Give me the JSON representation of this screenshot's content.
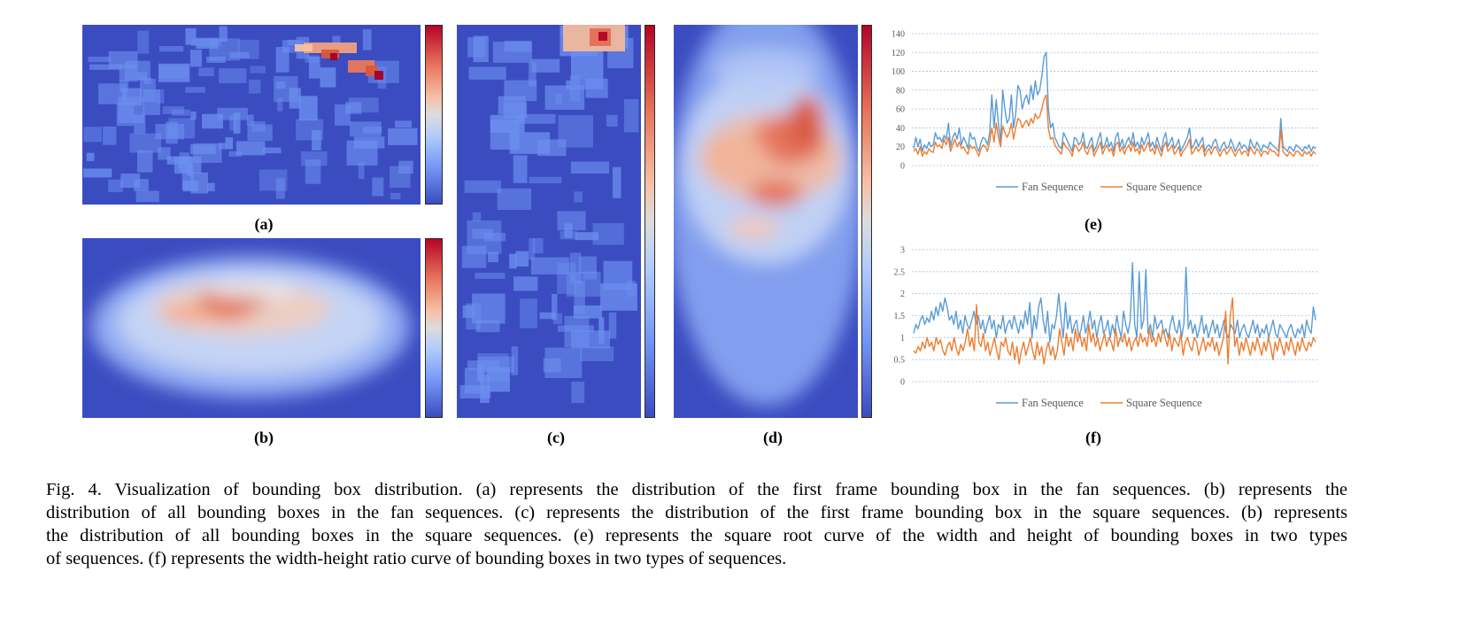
{
  "panels": {
    "a": {
      "label": "(a)"
    },
    "b": {
      "label": "(b)"
    },
    "c": {
      "label": "(c)"
    },
    "d": {
      "label": "(d)"
    },
    "e": {
      "label": "(e)"
    },
    "f": {
      "label": "(f)"
    }
  },
  "colormap": {
    "low": "#3b4cc0",
    "mid": "#dddcdc",
    "high": "#b40426"
  },
  "chart_data": [
    {
      "id": "e",
      "type": "line",
      "title": "",
      "xlabel": "",
      "ylabel": "",
      "ylim": [
        0,
        140
      ],
      "yticks": [
        "0",
        "20",
        "40",
        "60",
        "80",
        "100",
        "120",
        "140"
      ],
      "grid": true,
      "legend": "bottom",
      "series": [
        {
          "name": "Fan Sequence",
          "color": "#5b9bd5",
          "values": [
            18,
            30,
            20,
            28,
            15,
            22,
            18,
            25,
            20,
            22,
            35,
            28,
            30,
            25,
            32,
            28,
            45,
            20,
            30,
            35,
            28,
            40,
            22,
            30,
            25,
            18,
            35,
            28,
            30,
            20,
            15,
            25,
            30,
            28,
            22,
            35,
            75,
            40,
            70,
            45,
            25,
            80,
            60,
            45,
            50,
            75,
            40,
            55,
            85,
            80,
            60,
            70,
            75,
            65,
            85,
            70,
            90,
            75,
            80,
            95,
            115,
            120,
            60,
            40,
            45,
            30,
            25,
            20,
            18,
            35,
            30,
            25,
            20,
            15,
            30,
            28,
            22,
            25,
            35,
            20,
            18,
            25,
            30,
            15,
            20,
            28,
            35,
            18,
            22,
            30,
            20,
            25,
            15,
            30,
            35,
            20,
            28,
            18,
            25,
            30,
            22,
            35,
            20,
            25,
            18,
            30,
            22,
            28,
            35,
            20,
            25,
            18,
            30,
            22,
            15,
            28,
            35,
            20,
            25,
            30,
            18,
            22,
            28,
            15,
            20,
            25,
            30,
            40,
            18,
            22,
            28,
            20,
            25,
            30,
            15,
            20,
            22,
            18,
            25,
            28,
            20,
            15,
            22,
            25,
            18,
            20,
            28,
            22,
            15,
            20,
            25,
            18,
            22,
            20,
            15,
            28,
            22,
            18,
            25,
            20,
            15,
            22,
            20,
            18,
            25,
            22,
            20,
            18,
            15,
            50,
            20,
            18,
            15,
            20,
            18,
            15,
            22,
            20,
            18,
            15,
            20,
            18,
            22,
            15,
            20,
            18
          ]
        },
        {
          "name": "Square Sequence",
          "color": "#ed7d31",
          "values": [
            15,
            18,
            12,
            20,
            10,
            15,
            12,
            18,
            15,
            14,
            25,
            20,
            22,
            18,
            28,
            22,
            30,
            15,
            22,
            28,
            20,
            25,
            18,
            20,
            15,
            12,
            22,
            18,
            20,
            15,
            10,
            18,
            22,
            20,
            15,
            25,
            40,
            25,
            45,
            30,
            20,
            42,
            35,
            30,
            35,
            45,
            28,
            40,
            50,
            48,
            40,
            45,
            48,
            42,
            50,
            45,
            55,
            50,
            52,
            60,
            70,
            75,
            40,
            28,
            30,
            22,
            18,
            15,
            12,
            25,
            20,
            18,
            15,
            10,
            22,
            20,
            15,
            18,
            25,
            15,
            12,
            18,
            22,
            10,
            15,
            20,
            25,
            12,
            18,
            22,
            15,
            18,
            10,
            22,
            25,
            15,
            20,
            12,
            18,
            22,
            15,
            25,
            15,
            18,
            12,
            22,
            15,
            20,
            25,
            15,
            18,
            12,
            22,
            15,
            10,
            20,
            25,
            15,
            18,
            22,
            12,
            15,
            20,
            10,
            15,
            18,
            22,
            28,
            12,
            15,
            20,
            15,
            18,
            22,
            10,
            15,
            18,
            12,
            18,
            20,
            15,
            10,
            15,
            18,
            12,
            15,
            20,
            15,
            10,
            15,
            18,
            12,
            15,
            15,
            10,
            20,
            15,
            12,
            18,
            15,
            10,
            15,
            15,
            12,
            18,
            15,
            15,
            12,
            10,
            38,
            15,
            12,
            10,
            15,
            12,
            10,
            15,
            15,
            12,
            10,
            15,
            12,
            15,
            10,
            15,
            12
          ]
        }
      ]
    },
    {
      "id": "f",
      "type": "line",
      "title": "",
      "xlabel": "",
      "ylabel": "",
      "ylim": [
        0,
        3
      ],
      "yticks": [
        "0",
        "0.5",
        "1",
        "1.5",
        "2",
        "2.5",
        "3"
      ],
      "grid": true,
      "legend": "bottom",
      "series": [
        {
          "name": "Fan Sequence",
          "color": "#5b9bd5",
          "values": [
            1.1,
            1.3,
            1.2,
            1.4,
            1.5,
            1.3,
            1.45,
            1.35,
            1.6,
            1.4,
            1.7,
            1.5,
            1.8,
            1.6,
            1.9,
            1.7,
            1.4,
            1.5,
            1.3,
            1.6,
            1.2,
            1.4,
            1.1,
            1.5,
            1.3,
            1.2,
            1.4,
            1.6,
            1.3,
            1.5,
            1.2,
            1.4,
            1.1,
            1.3,
            1.5,
            1.2,
            1.4,
            1.0,
            1.3,
            1.2,
            1.5,
            1.1,
            1.3,
            1.4,
            1.2,
            1.5,
            1.3,
            1.1,
            1.4,
            1.2,
            1.6,
            1.3,
            1.8,
            1.0,
            1.5,
            1.2,
            1.7,
            1.9,
            1.4,
            1.1,
            1.6,
            0.9,
            1.3,
            1.2,
            1.5,
            2.0,
            1.4,
            1.0,
            1.8,
            1.2,
            1.5,
            1.1,
            1.3,
            1.4,
            1.0,
            1.2,
            1.5,
            1.1,
            1.3,
            1.6,
            1.2,
            1.4,
            1.0,
            1.3,
            1.5,
            1.1,
            1.2,
            1.4,
            1.0,
            1.3,
            1.1,
            1.5,
            1.2,
            1.0,
            1.6,
            1.3,
            1.1,
            1.4,
            2.7,
            1.3,
            1.0,
            2.5,
            1.2,
            1.4,
            2.55,
            1.1,
            1.3,
            1.0,
            1.5,
            1.2,
            1.3,
            1.4,
            1.1,
            1.2,
            1.0,
            1.3,
            1.5,
            1.2,
            1.1,
            1.4,
            1.0,
            1.3,
            2.6,
            1.2,
            1.4,
            1.1,
            1.3,
            1.0,
            1.2,
            1.5,
            1.1,
            1.3,
            1.0,
            1.2,
            1.4,
            1.1,
            1.3,
            1.0,
            1.2,
            1.4,
            1.1,
            1.0,
            1.3,
            1.2,
            1.1,
            1.4,
            1.0,
            1.2,
            1.3,
            1.1,
            1.0,
            1.2,
            1.4,
            1.1,
            1.3,
            1.0,
            1.2,
            1.1,
            1.3,
            1.0,
            1.2,
            1.4,
            1.1,
            1.0,
            1.3,
            1.2,
            1.1,
            1.0,
            1.2,
            1.3,
            1.1,
            1.0,
            1.2,
            1.1,
            1.3,
            1.0,
            1.4,
            1.2,
            1.1,
            1.7,
            1.4
          ]
        },
        {
          "name": "Square Sequence",
          "color": "#ed7d31",
          "values": [
            0.7,
            0.65,
            0.8,
            0.7,
            0.9,
            0.75,
            1.0,
            0.8,
            0.9,
            0.7,
            1.0,
            0.85,
            0.95,
            0.7,
            0.6,
            0.8,
            0.9,
            0.7,
            1.0,
            0.75,
            0.6,
            0.85,
            0.7,
            0.9,
            1.2,
            0.8,
            1.0,
            0.7,
            1.75,
            0.9,
            0.8,
            1.1,
            0.7,
            0.9,
            0.6,
            0.8,
            1.0,
            0.7,
            0.5,
            0.9,
            0.8,
            1.0,
            0.7,
            0.6,
            0.9,
            0.5,
            0.8,
            0.4,
            0.7,
            0.9,
            0.6,
            0.8,
            1.0,
            0.7,
            0.5,
            0.9,
            0.6,
            0.8,
            0.4,
            0.7,
            0.9,
            0.6,
            0.8,
            0.5,
            0.7,
            1.2,
            0.9,
            0.6,
            1.1,
            0.8,
            1.0,
            0.7,
            1.2,
            0.9,
            1.1,
            0.8,
            1.0,
            0.7,
            1.3,
            0.9,
            1.1,
            0.8,
            1.0,
            0.7,
            0.9,
            1.1,
            0.8,
            1.0,
            0.9,
            0.7,
            1.2,
            0.8,
            1.0,
            0.9,
            1.1,
            0.8,
            1.0,
            0.7,
            0.9,
            1.0,
            0.8,
            1.1,
            0.9,
            1.0,
            0.8,
            1.2,
            0.9,
            1.0,
            0.8,
            1.1,
            0.9,
            1.2,
            1.0,
            0.8,
            1.1,
            0.7,
            1.0,
            0.9,
            0.8,
            1.1,
            0.6,
            0.9,
            1.0,
            0.8,
            0.7,
            1.0,
            0.9,
            0.6,
            0.8,
            1.0,
            0.7,
            0.9,
            0.8,
            1.0,
            0.7,
            0.9,
            0.6,
            0.8,
            1.0,
            1.6,
            0.4,
            1.5,
            1.9,
            0.8,
            1.0,
            0.6,
            0.9,
            0.7,
            1.0,
            0.8,
            0.6,
            0.9,
            0.7,
            1.0,
            0.8,
            0.6,
            0.9,
            0.7,
            1.0,
            0.8,
            0.5,
            0.9,
            0.7,
            1.0,
            0.8,
            0.6,
            0.9,
            0.7,
            1.0,
            0.8,
            0.6,
            0.9,
            0.7,
            1.0,
            0.8,
            0.7,
            0.9,
            0.8,
            1.0,
            0.9
          ]
        }
      ]
    }
  ],
  "caption": {
    "line1": "Fig. 4.  Visualization of bounding box distribution. (a) represents the distribution of the first frame bounding box in the fan sequences. (b) represents the",
    "line2": "distribution of all bounding boxes in the fan sequences. (c) represents the distribution of the first frame bounding box in the square sequences. (b) represents",
    "line3": "the distribution of all bounding boxes in the square sequences. (e) represents the square root curve of the width and height of bounding boxes in two types",
    "line4": "of sequences. (f) represents the width-height ratio curve of bounding boxes in two types of sequences."
  }
}
